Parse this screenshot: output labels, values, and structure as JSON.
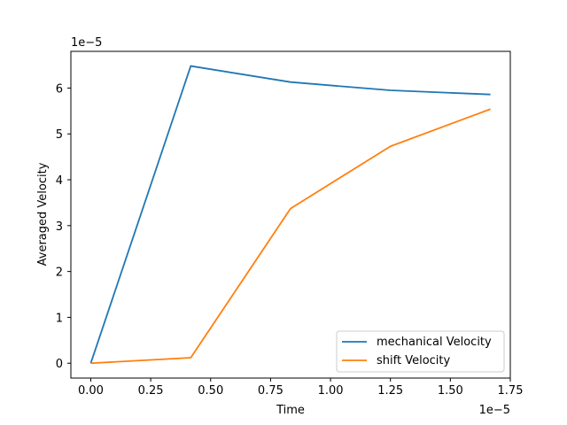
{
  "chart_data": {
    "type": "line",
    "title": "",
    "xlabel": "Time",
    "ylabel": "Averaged Velocity",
    "x_offset_text": "1e−5",
    "y_offset_text": "1e−5",
    "x": [
      0.0,
      4.17e-06,
      8.33e-06,
      1.25e-05,
      1.667e-05
    ],
    "series": [
      {
        "name": "mechanical Velocity",
        "color": "#1f77b4",
        "values": [
          0.0,
          6.48e-05,
          6.13e-05,
          5.95e-05,
          5.86e-05
        ]
      },
      {
        "name": "shift Velocity",
        "color": "#ff7f0e",
        "values": [
          0.0,
          1.2e-06,
          3.37e-05,
          4.73e-05,
          5.54e-05
        ]
      }
    ],
    "xlim": [
      -8.3e-07,
      1.75e-05
    ],
    "ylim": [
      -3.24e-06,
      6.8e-05
    ],
    "x_ticks": [
      {
        "value": 0.0,
        "label": "0.00"
      },
      {
        "value": 2.5e-06,
        "label": "0.25"
      },
      {
        "value": 5e-06,
        "label": "0.50"
      },
      {
        "value": 7.5e-06,
        "label": "0.75"
      },
      {
        "value": 1e-05,
        "label": "1.00"
      },
      {
        "value": 1.25e-05,
        "label": "1.25"
      },
      {
        "value": 1.5e-05,
        "label": "1.50"
      },
      {
        "value": 1.75e-05,
        "label": "1.75"
      }
    ],
    "y_ticks": [
      {
        "value": 0.0,
        "label": "0"
      },
      {
        "value": 1e-05,
        "label": "1"
      },
      {
        "value": 2e-05,
        "label": "2"
      },
      {
        "value": 3e-05,
        "label": "3"
      },
      {
        "value": 4e-05,
        "label": "4"
      },
      {
        "value": 5e-05,
        "label": "5"
      },
      {
        "value": 6e-05,
        "label": "6"
      }
    ],
    "grid": false,
    "legend_position": "lower-right"
  }
}
